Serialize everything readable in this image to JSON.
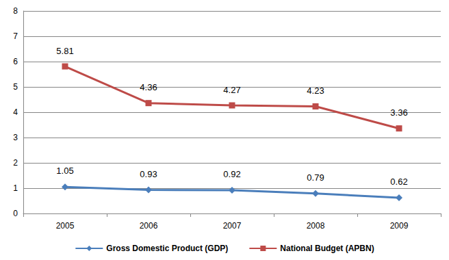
{
  "chart_data": {
    "type": "line",
    "categories": [
      "2005",
      "2006",
      "2007",
      "2008",
      "2009"
    ],
    "series": [
      {
        "name": "Gross Domestic Product (GDP)",
        "color": "#4a7ebb",
        "marker": "diamond",
        "values": [
          1.05,
          0.93,
          0.92,
          0.79,
          0.62
        ]
      },
      {
        "name": "National Budget (APBN)",
        "color": "#be4b48",
        "marker": "square",
        "values": [
          5.81,
          4.36,
          4.27,
          4.23,
          3.36
        ]
      }
    ],
    "ylim": [
      0,
      8
    ],
    "yticks": [
      0,
      1,
      2,
      3,
      4,
      5,
      6,
      7,
      8
    ],
    "grid": true,
    "legend": "bottom",
    "data_labels": true
  }
}
